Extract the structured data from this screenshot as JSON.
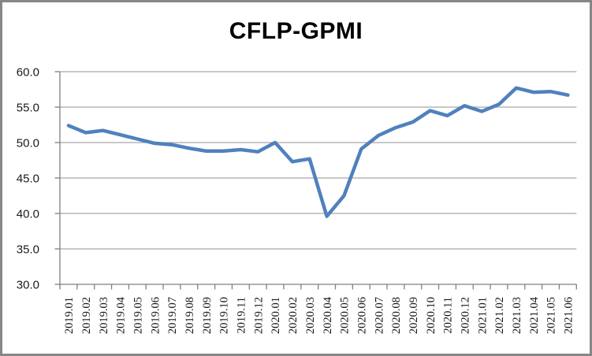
{
  "title": "CFLP-GPMI",
  "chart_data": {
    "type": "line",
    "title": "CFLP-GPMI",
    "xlabel": "",
    "ylabel": "",
    "ylim": [
      30,
      60
    ],
    "ytick_step": 5,
    "ytick_labels": [
      "60.0",
      "55.0",
      "50.0",
      "45.0",
      "40.0",
      "35.0",
      "30.0"
    ],
    "grid": true,
    "legend_position": "none",
    "categories": [
      "2019.01",
      "2019.02",
      "2019.03",
      "2019.04",
      "2019.05",
      "2019.06",
      "2019.07",
      "2019.08",
      "2019.09",
      "2019.10",
      "2019.11",
      "2019.12",
      "2020.01",
      "2020.02",
      "2020.03",
      "2020.04",
      "2020.05",
      "2020.06",
      "2020.07",
      "2020.08",
      "2020.09",
      "2020.10",
      "2020.11",
      "2020.12",
      "2021.01",
      "2021.02",
      "2021.03",
      "2021.04",
      "2021.05",
      "2021.06"
    ],
    "series": [
      {
        "name": "CFLP-GPMI",
        "values": [
          52.4,
          51.4,
          51.7,
          51.1,
          50.5,
          49.9,
          49.7,
          49.2,
          48.8,
          48.8,
          49.0,
          48.7,
          50.0,
          47.3,
          47.7,
          39.6,
          42.5,
          49.1,
          51.0,
          52.1,
          52.9,
          54.5,
          53.8,
          55.2,
          54.4,
          55.4,
          57.7,
          57.1,
          57.2,
          56.7
        ]
      }
    ],
    "colors": {
      "line": "#4F81BD",
      "gridline": "#A6A6A6",
      "axis": "#808080",
      "tick_label": "#1a1a1a",
      "background": "#ffffff",
      "frame_border": "#878787"
    }
  }
}
